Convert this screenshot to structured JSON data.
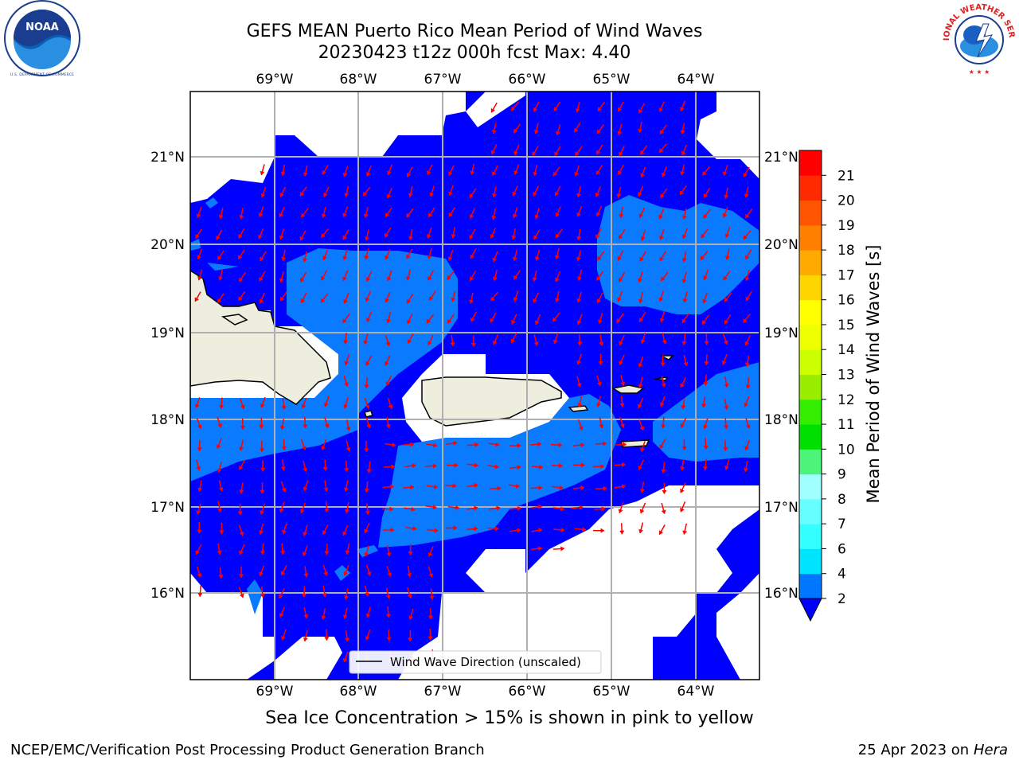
{
  "header": {
    "title_line1": "GEFS MEAN Puerto Rico Mean Period of Wind Waves",
    "title_line2": "20230423 t12z 000h fcst   Max: 4.40"
  },
  "logos": {
    "left": "NOAA",
    "left_ring_text": "NATIONAL OCEANIC AND ATMOSPHERIC ADMINISTRATION · U.S. DEPARTMENT OF COMMERCE",
    "right_ring_text": "NATIONAL WEATHER SERVICE"
  },
  "map": {
    "lon_ticks": [
      "69°W",
      "68°W",
      "67°W",
      "66°W",
      "65°W",
      "64°W"
    ],
    "lat_ticks": [
      "21°N",
      "20°N",
      "19°N",
      "18°N",
      "17°N",
      "16°N"
    ],
    "legend_label": "Wind Wave Direction (unscaled)",
    "colors": {
      "ocean_low": "#0000ff",
      "ocean_mid": "#0a7bff",
      "land": "#eeeedf",
      "arrow": "#ff0000",
      "grid": "#b0b0b0"
    }
  },
  "colorbar": {
    "label": "Mean Period of Wind Waves [s]",
    "ticks": [
      "2",
      "4",
      "6",
      "7",
      "8",
      "9",
      "10",
      "11",
      "12",
      "13",
      "14",
      "15",
      "16",
      "17",
      "18",
      "19",
      "20",
      "21"
    ],
    "colors": [
      "#0077ff",
      "#00e5ff",
      "#33ffff",
      "#66ffff",
      "#a0ffff",
      "#4cf57a",
      "#00e000",
      "#33ee00",
      "#99ee00",
      "#ccff00",
      "#eeff00",
      "#ffff00",
      "#ffd500",
      "#ffaa00",
      "#ff8000",
      "#ff5500",
      "#ff2a00",
      "#ff0000"
    ],
    "extend_color": "#0000ff"
  },
  "subtitle": "Sea Ice Concentration > 15% is shown in pink to yellow",
  "footer": {
    "left": "NCEP/EMC/Verification Post Processing Product Generation Branch",
    "right_date": "25 Apr 2023 on",
    "right_host": "Hera"
  }
}
